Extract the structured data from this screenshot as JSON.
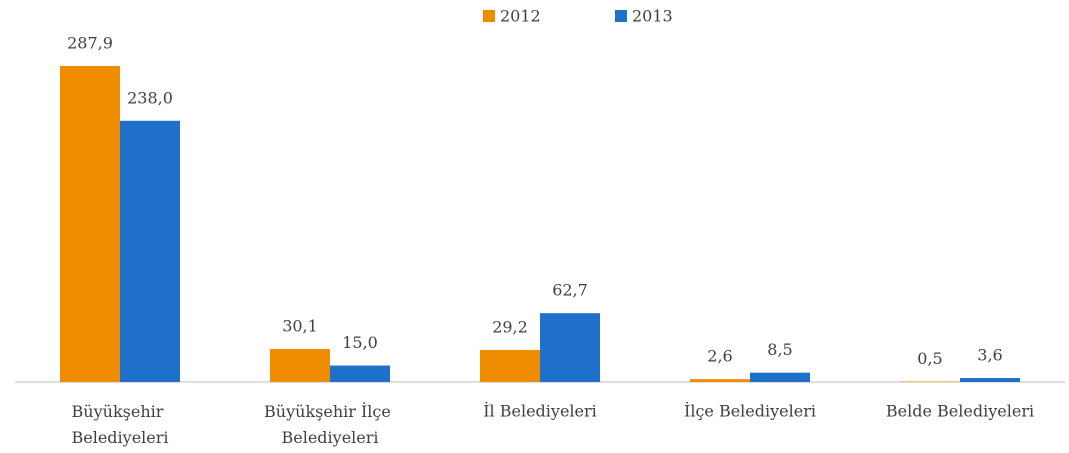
{
  "chart_data": {
    "type": "bar",
    "categories": [
      "Büyükşehir Belediyeleri",
      "Büyükşehir İlçe Belediyeleri",
      "İl Belediyeleri",
      "İlçe Belediyeleri",
      "Belde Belediyeleri"
    ],
    "series": [
      {
        "name": "2012",
        "color": "#f08c00",
        "values": [
          287.9,
          30.1,
          29.2,
          2.6,
          0.5
        ],
        "value_labels": [
          "287,9",
          "30,1",
          "29,2",
          "2,6",
          "0,5"
        ]
      },
      {
        "name": "2013",
        "color": "#1f70c8",
        "values": [
          238.0,
          15.0,
          62.7,
          8.5,
          3.6
        ],
        "value_labels": [
          "238,0",
          "15,0",
          "62,7",
          "8,5",
          "3,6"
        ]
      }
    ],
    "legend": "top"
  }
}
